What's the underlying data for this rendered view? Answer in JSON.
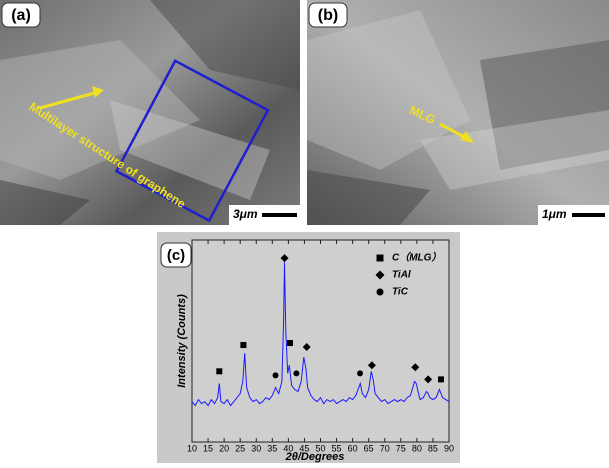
{
  "panels": [
    {
      "label": "(a)",
      "annotation": "Multilayer structure of graphene",
      "scale_bar": "3μm"
    },
    {
      "label": "(b)",
      "annotation": "MLG",
      "scale_bar": "1μm"
    }
  ],
  "chart_data": {
    "type": "line",
    "panel_label": "(c)",
    "x_label": "2θ/Degrees",
    "y_label": "Intensity (Counts)",
    "xlim": [
      10,
      90
    ],
    "xticks": [
      10,
      15,
      20,
      25,
      30,
      35,
      40,
      45,
      50,
      55,
      60,
      65,
      70,
      75,
      80,
      85,
      90
    ],
    "ylim": [
      0,
      100
    ],
    "series": [
      {
        "color": "#1a1aff",
        "x": [
          10,
          11,
          12,
          13,
          14,
          15,
          16,
          17,
          18,
          18.5,
          19,
          20,
          21,
          22,
          23,
          24,
          25,
          25.8,
          26.4,
          27,
          28,
          29,
          30,
          31,
          32,
          33,
          34,
          35,
          36,
          37,
          38,
          38.5,
          38.8,
          39.2,
          39.8,
          40.3,
          41,
          42,
          43,
          44,
          44.8,
          45.5,
          46,
          47,
          48,
          49,
          50,
          51,
          52,
          53,
          54,
          55,
          56,
          57,
          58,
          59,
          60,
          61,
          62.4,
          63,
          64,
          65,
          65.8,
          66.5,
          67,
          68,
          69,
          70,
          71,
          72,
          73,
          74,
          75,
          76,
          77,
          78,
          79.3,
          79.8,
          80.5,
          81,
          82,
          83,
          83.5,
          84,
          85,
          86,
          87,
          88,
          89,
          90
        ],
        "values": [
          20,
          18,
          21,
          19,
          20,
          18,
          21,
          19,
          22,
          29,
          20,
          19,
          21,
          18,
          20,
          22,
          24,
          30,
          44,
          27,
          22,
          20,
          21,
          19,
          20,
          22,
          21,
          23,
          27,
          24,
          30,
          60,
          89,
          55,
          34,
          38,
          28,
          26,
          25,
          30,
          42,
          36,
          27,
          23,
          21,
          20,
          22,
          19,
          21,
          20,
          21,
          19,
          20,
          21,
          20,
          22,
          21,
          23,
          29,
          24,
          22,
          26,
          35,
          30,
          24,
          22,
          20,
          21,
          19,
          20,
          21,
          20,
          21,
          20,
          22,
          23,
          30,
          29,
          24,
          21,
          22,
          25,
          24,
          22,
          21,
          22,
          26,
          22,
          21,
          20
        ]
      }
    ],
    "phases": [
      {
        "name": "C（MLG）",
        "marker": "square",
        "x": [
          18.5,
          26,
          40.5,
          87.5
        ],
        "y": [
          35,
          48,
          49,
          31
        ]
      },
      {
        "name": "TiAl",
        "marker": "diamond",
        "x": [
          38.8,
          45.7,
          66,
          79.5,
          83.5
        ],
        "y": [
          91,
          47,
          38,
          37,
          31
        ]
      },
      {
        "name": "TiC",
        "marker": "circle",
        "x": [
          36,
          42.5,
          62.3
        ],
        "y": [
          33,
          34,
          34
        ]
      }
    ]
  }
}
